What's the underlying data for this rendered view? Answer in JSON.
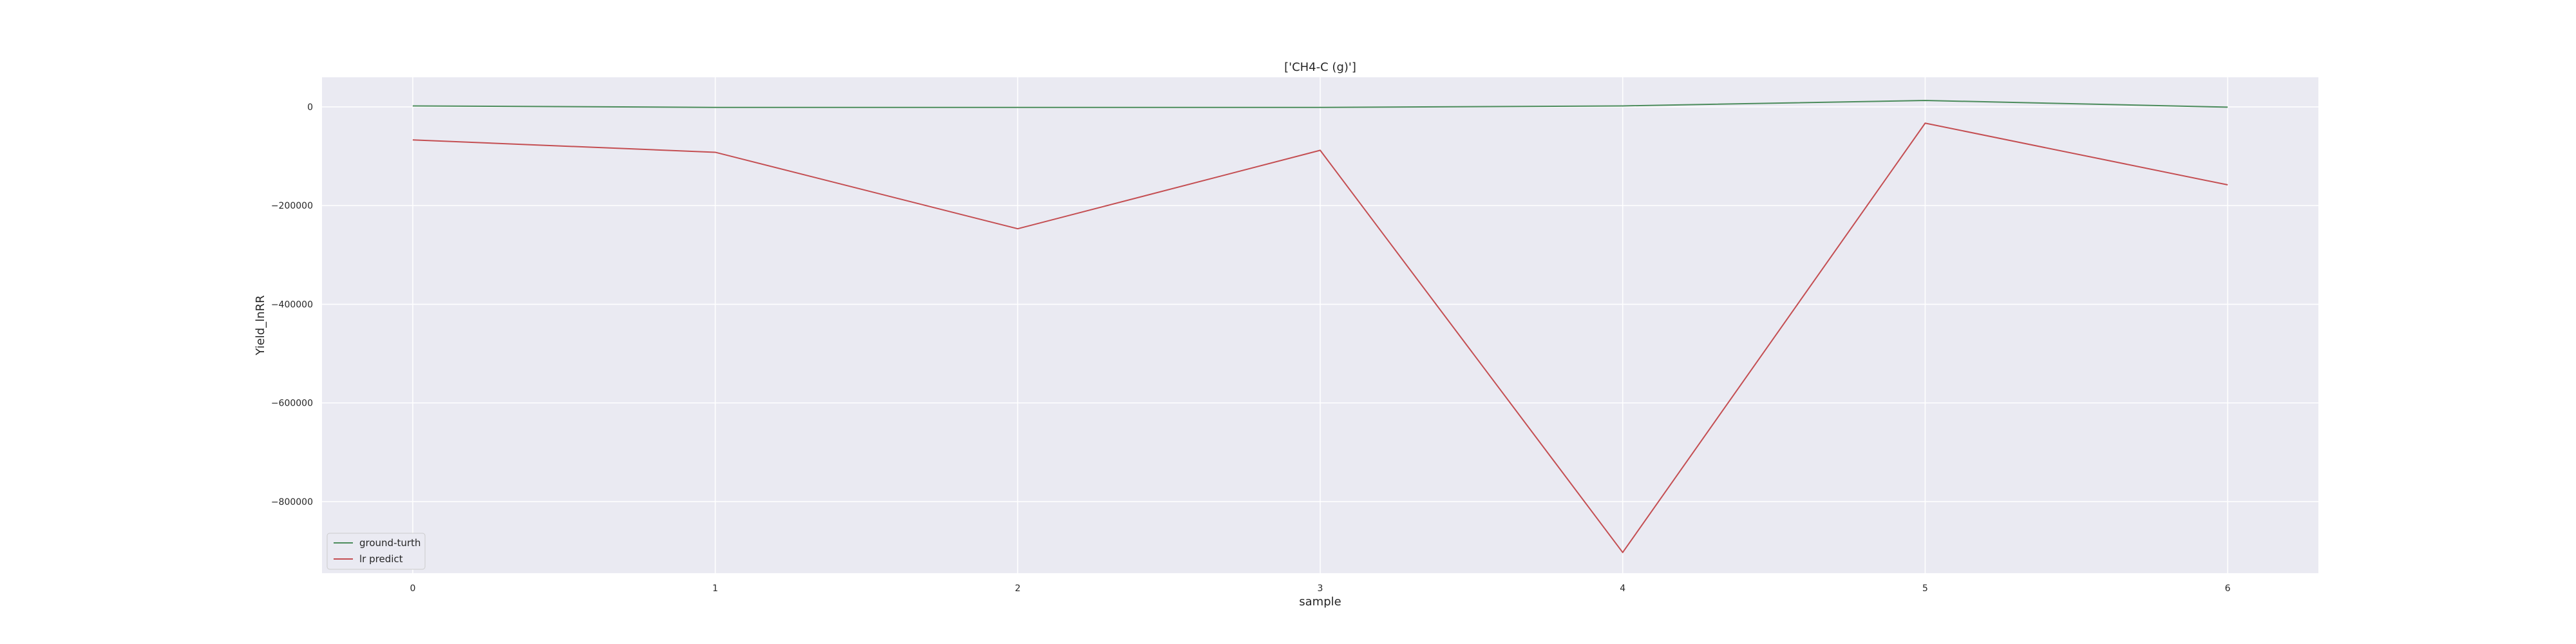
{
  "chart_data": {
    "type": "line",
    "title": "['CH4-C (g)']",
    "xlabel": "sample",
    "ylabel": "Yield_lnRR",
    "x": [
      0,
      1,
      2,
      3,
      4,
      5,
      6
    ],
    "x_ticks": [
      "0",
      "1",
      "2",
      "3",
      "4",
      "5",
      "6"
    ],
    "y_ticks": [
      0,
      -200000,
      -400000,
      -600000,
      -800000
    ],
    "y_tick_labels": [
      "0",
      "−200000",
      "−400000",
      "−600000",
      "−800000"
    ],
    "xlim": [
      -0.3,
      6.3
    ],
    "ylim": [
      -945000,
      60000
    ],
    "grid": true,
    "legend_position": "lower-left",
    "series": [
      {
        "name": "ground-turth",
        "color": "#4c8c5c",
        "values": [
          2000,
          -1000,
          -1000,
          -1000,
          2000,
          13000,
          -500
        ]
      },
      {
        "name": "lr predict",
        "color": "#c44e52",
        "values": [
          -67000,
          -92000,
          -247000,
          -88000,
          -903000,
          -33000,
          -158000
        ]
      }
    ]
  },
  "style": {
    "plot_background": "#eaeaf2",
    "grid_color": "#ffffff",
    "text_color": "#262626"
  }
}
